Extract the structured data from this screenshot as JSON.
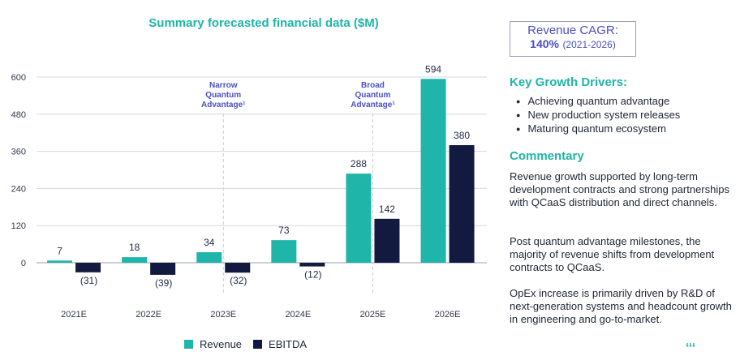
{
  "chart_data": {
    "type": "bar",
    "title": "Summary forecasted financial data ($M)",
    "categories": [
      "2021E",
      "2022E",
      "2023E",
      "2024E",
      "2025E",
      "2026E"
    ],
    "series": [
      {
        "name": "Revenue",
        "values": [
          7,
          18,
          34,
          73,
          288,
          594
        ],
        "labels": [
          "7",
          "18",
          "34",
          "73",
          "288",
          "594"
        ],
        "color": "#1fb5a8"
      },
      {
        "name": "EBITDA",
        "values": [
          -31,
          -39,
          -32,
          -12,
          142,
          380
        ],
        "labels": [
          "(31)",
          "(39)",
          "(32)",
          "(12)",
          "142",
          "380"
        ],
        "color": "#131a3f"
      }
    ],
    "yticks": [
      0,
      120,
      240,
      360,
      480,
      600
    ],
    "ylim": [
      -60,
      620
    ],
    "grid": true,
    "legend": "bottom",
    "annotations": [
      {
        "category": "2023E",
        "lines": [
          "Narrow",
          "Quantum",
          "Advantage¹"
        ]
      },
      {
        "category": "2025E",
        "lines": [
          "Broad",
          "Quantum",
          "Advantage¹"
        ]
      }
    ]
  },
  "sidebar": {
    "cagr_label": "Revenue CAGR:",
    "cagr_value": "140%",
    "cagr_period": "(2021-2026)",
    "drivers_heading": "Key Growth Drivers:",
    "drivers": [
      "Achieving quantum advantage",
      "New production system releases",
      "Maturing quantum ecosystem"
    ],
    "commentary_heading": "Commentary",
    "paragraphs": [
      "Revenue growth supported by long-term development contracts and strong partnerships with QCaaS distribution and direct channels.",
      "Post quantum advantage milestones, the majority of revenue shifts from development contracts to QCaaS.",
      "OpEx increase is primarily driven by R&D of next-generation systems and headcount growth in engineering and go-to-market."
    ]
  },
  "legend": {
    "revenue": "Revenue",
    "ebitda": "EBITDA"
  },
  "colors": {
    "accent": "#1fb5a8",
    "dark": "#131a3f",
    "highlight": "#4b4fc4"
  }
}
